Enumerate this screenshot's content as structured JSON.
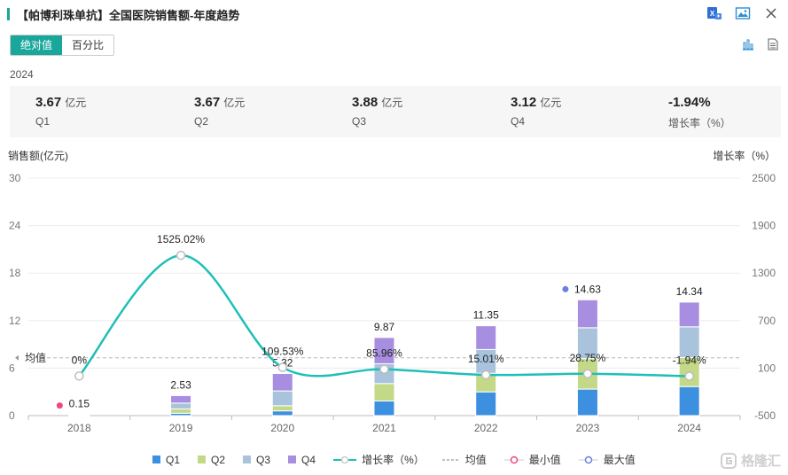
{
  "header": {
    "title": "【帕博利珠单抗】全国医院销售额-年度趋势"
  },
  "tabs": [
    {
      "label": "绝对值",
      "active": true
    },
    {
      "label": "百分比",
      "active": false
    }
  ],
  "summary": {
    "year": "2024",
    "items": [
      {
        "value": "3.67",
        "unit": "亿元",
        "label": "Q1"
      },
      {
        "value": "3.67",
        "unit": "亿元",
        "label": "Q2"
      },
      {
        "value": "3.88",
        "unit": "亿元",
        "label": "Q3"
      },
      {
        "value": "3.12",
        "unit": "亿元",
        "label": "Q4"
      },
      {
        "value": "-1.94%",
        "unit": "",
        "label": "增长率（%）"
      }
    ]
  },
  "watermark": "格隆汇",
  "colors": {
    "accent": "#1aa79b",
    "q1": "#3d8fe0",
    "q2": "#c3d987",
    "q3": "#a9c3dc",
    "q4": "#a88ee0",
    "growth": "#1fbfb8",
    "min": "#f0477a",
    "max": "#6b7fe0"
  },
  "chart_data": {
    "type": "bar",
    "ylabel": "销售额(亿元)",
    "ylabel_right": "增长率（%）",
    "ylim": [
      0,
      30
    ],
    "y_ticks": [
      "0",
      "6",
      "12",
      "18",
      "24",
      "30"
    ],
    "ylim_right": [
      -500,
      2500
    ],
    "y_ticks_right": [
      "-500",
      "100",
      "700",
      "1300",
      "1900",
      "2500"
    ],
    "categories": [
      "2018",
      "2019",
      "2020",
      "2021",
      "2022",
      "2023",
      "2024"
    ],
    "series": [
      {
        "name": "Q1",
        "values": [
          0.04,
          0.3,
          0.6,
          1.85,
          3.0,
          3.35,
          3.67
        ]
      },
      {
        "name": "Q2",
        "values": [
          0.04,
          0.55,
          0.65,
          2.2,
          2.35,
          3.85,
          3.67
        ]
      },
      {
        "name": "Q3",
        "values": [
          0.04,
          0.73,
          1.87,
          2.5,
          3.0,
          3.9,
          3.88
        ]
      },
      {
        "name": "Q4",
        "values": [
          0.03,
          0.95,
          2.2,
          3.32,
          3.0,
          3.53,
          3.12
        ]
      }
    ],
    "totals": [
      "0.15",
      "2.53",
      "5.32",
      "9.87",
      "11.35",
      "14.63",
      "14.34"
    ],
    "growth": {
      "name": "增长率（%）",
      "values": [
        0,
        1525.02,
        109.53,
        85.96,
        15.01,
        28.75,
        -1.94
      ],
      "labels": [
        "0%",
        "1525.02%",
        "109.53%",
        "85.96%",
        "15.01%",
        "28.75%",
        "-1.94%"
      ]
    },
    "average": {
      "label": "均值",
      "value": 7.3
    },
    "min_marker": {
      "category": "2018",
      "value": 0.15
    },
    "max_marker": {
      "category": "2023",
      "value": 14.63
    },
    "legend": [
      "Q1",
      "Q2",
      "Q3",
      "Q4",
      "增长率（%）",
      "均值",
      "最小值",
      "最大值"
    ],
    "grid": true,
    "legend_position": "bottom"
  }
}
